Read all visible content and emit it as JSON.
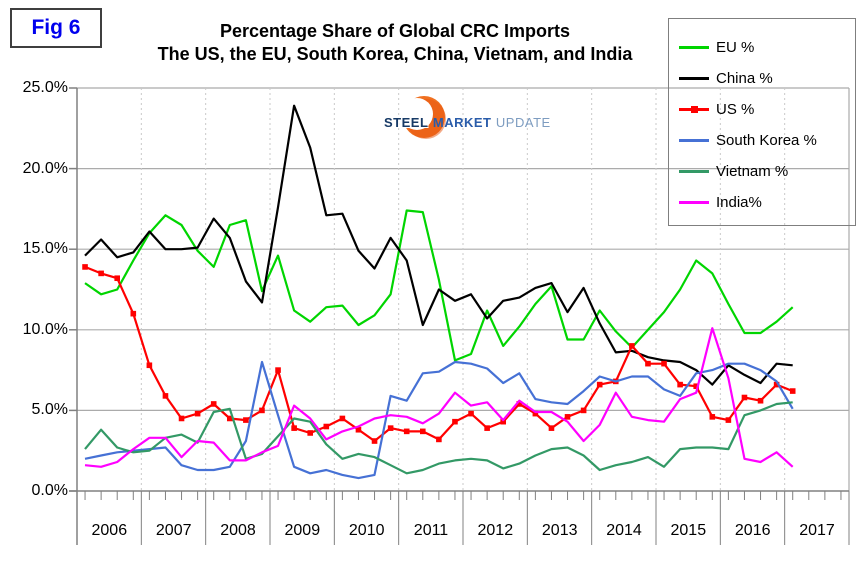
{
  "fig_label": "Fig 6",
  "title": {
    "line1": "Percentage Share of Global CRC Imports",
    "line2": "The US, the EU, South Korea, China, Vietnam, and India"
  },
  "logo": {
    "word1": "STEEL",
    "word2": "MARKET",
    "word3": "UPDATE",
    "swoosh_color": "#f07020"
  },
  "axes": {
    "y_labels": [
      "25.0%",
      "20.0%",
      "15.0%",
      "10.0%",
      "5.0%",
      "0.0%"
    ],
    "x_labels": [
      "2006",
      "2007",
      "2008",
      "2009",
      "2010",
      "2011",
      "2012",
      "2013",
      "2014",
      "2015",
      "2016",
      "2017"
    ]
  },
  "colors": {
    "grid": "#ababab",
    "year_grid": "#c9c9c9",
    "axis": "#808080",
    "fig_label_blue": "#0000ee"
  },
  "chart_data": {
    "type": "line",
    "title": "Percentage Share of Global CRC Imports",
    "subtitle": "The US, the EU, South Korea, China, Vietnam, and India",
    "ylim": [
      0,
      25
    ],
    "y_tick_step": 5,
    "grid": true,
    "legend_position": "top-right",
    "x_unit": "quarter",
    "x": [
      "2006 Q1",
      "2006 Q2",
      "2006 Q3",
      "2006 Q4",
      "2007 Q1",
      "2007 Q2",
      "2007 Q3",
      "2007 Q4",
      "2008 Q1",
      "2008 Q2",
      "2008 Q3",
      "2008 Q4",
      "2009 Q1",
      "2009 Q2",
      "2009 Q3",
      "2009 Q4",
      "2010 Q1",
      "2010 Q2",
      "2010 Q3",
      "2010 Q4",
      "2011 Q1",
      "2011 Q2",
      "2011 Q3",
      "2011 Q4",
      "2012 Q1",
      "2012 Q2",
      "2012 Q3",
      "2012 Q4",
      "2013 Q1",
      "2013 Q2",
      "2013 Q3",
      "2013 Q4",
      "2014 Q1",
      "2014 Q2",
      "2014 Q3",
      "2014 Q4",
      "2015 Q1",
      "2015 Q2",
      "2015 Q3",
      "2015 Q4",
      "2016 Q1",
      "2016 Q2",
      "2016 Q3",
      "2016 Q4",
      "2017 Q1"
    ],
    "series": [
      {
        "name": "EU %",
        "color": "#00d500",
        "marker": false,
        "values": [
          12.9,
          12.2,
          12.5,
          14.3,
          16.0,
          17.1,
          16.5,
          14.9,
          13.9,
          16.5,
          16.8,
          12.4,
          14.6,
          11.2,
          10.5,
          11.4,
          11.5,
          10.3,
          10.9,
          12.2,
          17.4,
          17.3,
          13.1,
          8.1,
          8.5,
          11.2,
          9.0,
          10.2,
          11.6,
          12.7,
          9.4,
          9.4,
          11.2,
          9.9,
          8.9,
          10.0,
          11.1,
          12.5,
          14.3,
          13.5,
          11.6,
          9.8,
          9.8,
          10.5,
          11.4
        ]
      },
      {
        "name": "China %",
        "color": "#000000",
        "marker": false,
        "values": [
          14.6,
          15.6,
          14.5,
          14.8,
          16.1,
          15.0,
          15.0,
          15.1,
          16.9,
          15.7,
          13.0,
          11.7,
          17.6,
          23.9,
          21.3,
          17.1,
          17.2,
          14.9,
          13.8,
          15.7,
          14.3,
          10.3,
          12.5,
          11.8,
          12.2,
          10.7,
          11.8,
          12.0,
          12.6,
          12.9,
          11.1,
          12.6,
          10.4,
          8.6,
          8.7,
          8.3,
          8.1,
          8.0,
          7.5,
          6.6,
          7.8,
          7.2,
          6.7,
          7.9,
          7.8
        ]
      },
      {
        "name": "US %",
        "color": "#ff0000",
        "marker": true,
        "values": [
          13.9,
          13.5,
          13.2,
          11.0,
          7.8,
          5.9,
          4.5,
          4.8,
          5.4,
          4.5,
          4.4,
          5.0,
          7.5,
          3.9,
          3.6,
          4.0,
          4.5,
          3.8,
          3.1,
          3.9,
          3.7,
          3.7,
          3.2,
          4.3,
          4.8,
          3.9,
          4.3,
          5.4,
          4.8,
          3.9,
          4.6,
          5.0,
          6.6,
          6.8,
          9.0,
          7.9,
          7.9,
          6.6,
          6.5,
          4.6,
          4.4,
          5.8,
          5.6,
          6.6,
          6.2
        ]
      },
      {
        "name": "South Korea %",
        "color": "#4671d5",
        "marker": false,
        "values": [
          2.0,
          2.2,
          2.4,
          2.5,
          2.6,
          2.7,
          1.6,
          1.3,
          1.3,
          1.5,
          3.1,
          8.0,
          4.7,
          1.5,
          1.1,
          1.3,
          1.0,
          0.8,
          1.0,
          5.9,
          5.6,
          7.3,
          7.4,
          8.0,
          7.9,
          7.6,
          6.7,
          7.3,
          5.7,
          5.5,
          5.4,
          6.2,
          7.1,
          6.8,
          7.1,
          7.1,
          6.3,
          5.9,
          7.3,
          7.5,
          7.9,
          7.9,
          7.5,
          6.8,
          5.1
        ]
      },
      {
        "name": "Vietnam %",
        "color": "#339966",
        "marker": false,
        "values": [
          2.6,
          3.8,
          2.7,
          2.4,
          2.5,
          3.3,
          3.5,
          3.0,
          4.9,
          5.1,
          2.0,
          2.3,
          3.4,
          4.5,
          4.3,
          2.9,
          2.0,
          2.3,
          2.1,
          1.6,
          1.1,
          1.3,
          1.7,
          1.9,
          2.0,
          1.9,
          1.4,
          1.7,
          2.2,
          2.6,
          2.7,
          2.2,
          1.3,
          1.6,
          1.8,
          2.1,
          1.5,
          2.6,
          2.7,
          2.7,
          2.6,
          4.7,
          5.0,
          5.4,
          5.5
        ]
      },
      {
        "name": "India%",
        "color": "#ff00ff",
        "marker": false,
        "values": [
          1.6,
          1.5,
          1.8,
          2.6,
          3.3,
          3.3,
          2.1,
          3.1,
          3.0,
          1.9,
          1.9,
          2.4,
          2.8,
          5.3,
          4.5,
          3.2,
          3.7,
          4.0,
          4.5,
          4.7,
          4.6,
          4.2,
          4.8,
          6.1,
          5.3,
          5.5,
          4.4,
          5.6,
          4.9,
          4.9,
          4.3,
          3.1,
          4.1,
          6.1,
          4.6,
          4.4,
          4.3,
          5.7,
          6.1,
          10.1,
          7.0,
          2.0,
          1.8,
          2.4,
          1.5
        ]
      }
    ]
  }
}
